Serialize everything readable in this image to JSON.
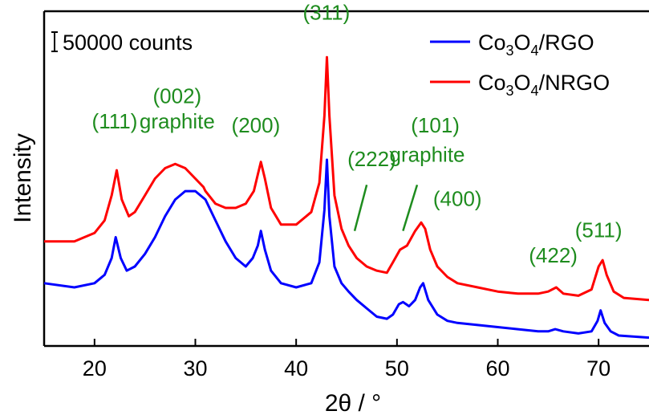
{
  "chart_data": {
    "type": "line",
    "xlabel": "2θ / °",
    "ylabel": "Intensity",
    "xlim": [
      15,
      75
    ],
    "xticks": [
      20,
      30,
      40,
      50,
      60,
      70
    ],
    "scale_note": "50000 counts",
    "legend_placement": "top-right",
    "grid": false,
    "series": [
      {
        "name": "Co3O4/RGO",
        "color": "#0000ff",
        "x": [
          15,
          18,
          20,
          21,
          21.7,
          22.1,
          22.6,
          23.2,
          24,
          25,
          26,
          27,
          28,
          29,
          30,
          31,
          32,
          33,
          34,
          35,
          35.7,
          36.2,
          36.5,
          36.9,
          37.5,
          38.5,
          40,
          41.5,
          42.3,
          42.8,
          43.05,
          43.3,
          43.8,
          44.5,
          45.2,
          46,
          47,
          48,
          49,
          49.6,
          50.2,
          50.6,
          51.2,
          51.8,
          52.3,
          52.6,
          53.1,
          54,
          55,
          56,
          58,
          60,
          62,
          64,
          65,
          65.7,
          66.5,
          68,
          69.3,
          69.9,
          70.2,
          70.6,
          71.2,
          72,
          75
        ],
        "y": [
          0.3,
          0.28,
          0.3,
          0.34,
          0.42,
          0.52,
          0.42,
          0.36,
          0.38,
          0.44,
          0.52,
          0.62,
          0.7,
          0.74,
          0.74,
          0.7,
          0.6,
          0.5,
          0.42,
          0.38,
          0.42,
          0.48,
          0.55,
          0.46,
          0.36,
          0.3,
          0.28,
          0.3,
          0.4,
          0.65,
          0.89,
          0.62,
          0.38,
          0.3,
          0.26,
          0.22,
          0.18,
          0.14,
          0.13,
          0.15,
          0.2,
          0.21,
          0.19,
          0.22,
          0.28,
          0.3,
          0.22,
          0.15,
          0.12,
          0.11,
          0.1,
          0.09,
          0.08,
          0.07,
          0.07,
          0.08,
          0.07,
          0.06,
          0.07,
          0.12,
          0.17,
          0.11,
          0.07,
          0.05,
          0.04
        ]
      },
      {
        "name": "Co3O4/NRGO",
        "color": "#ff0000",
        "x": [
          15,
          18,
          20,
          21,
          21.7,
          22.2,
          22.7,
          23.4,
          24,
          25,
          26,
          27,
          28,
          29,
          30,
          30.8,
          31,
          32,
          33,
          34,
          35,
          35.8,
          36.2,
          36.5,
          36.9,
          37.5,
          38.5,
          40,
          41.5,
          42.3,
          42.8,
          43.05,
          43.3,
          43.8,
          44.5,
          45.2,
          46,
          47,
          48,
          49,
          49.6,
          50.3,
          51,
          51.8,
          52.4,
          52.8,
          53.3,
          54,
          55,
          56,
          58,
          60,
          62,
          64,
          65,
          65.8,
          66.5,
          68,
          69.3,
          70,
          70.4,
          70.8,
          71.5,
          72.5,
          75
        ],
        "y": [
          0.5,
          0.5,
          0.54,
          0.6,
          0.72,
          0.84,
          0.7,
          0.62,
          0.64,
          0.72,
          0.8,
          0.85,
          0.87,
          0.85,
          0.8,
          0.76,
          0.74,
          0.68,
          0.66,
          0.66,
          0.68,
          0.74,
          0.82,
          0.88,
          0.8,
          0.66,
          0.58,
          0.58,
          0.64,
          0.78,
          1.1,
          1.38,
          1.1,
          0.72,
          0.56,
          0.48,
          0.42,
          0.38,
          0.36,
          0.35,
          0.4,
          0.46,
          0.48,
          0.55,
          0.59,
          0.56,
          0.46,
          0.38,
          0.33,
          0.3,
          0.28,
          0.26,
          0.25,
          0.25,
          0.26,
          0.28,
          0.25,
          0.24,
          0.27,
          0.38,
          0.41,
          0.34,
          0.26,
          0.23,
          0.22
        ]
      }
    ],
    "annotations": [
      {
        "text": "(111)",
        "x": 22.0,
        "level": 1.04
      },
      {
        "text": "(002)",
        "x": 28.2,
        "level": 1.16
      },
      {
        "text": "graphite",
        "x": 28.2,
        "level": 1.04
      },
      {
        "text": "(200)",
        "x": 36.0,
        "level": 1.02
      },
      {
        "text": "(311)",
        "x": 43.0,
        "level": 1.56
      },
      {
        "text": "(222)",
        "x": 47.5,
        "level": 0.86
      },
      {
        "text": "(101)",
        "x": 53.8,
        "level": 1.02
      },
      {
        "text": "graphite",
        "x": 53.0,
        "level": 0.88
      },
      {
        "text": "(400)",
        "x": 56.0,
        "level": 0.67
      },
      {
        "text": "(422)",
        "x": 65.5,
        "level": 0.4
      },
      {
        "text": "(511)",
        "x": 70.0,
        "level": 0.52
      }
    ],
    "pointer_lines": [
      {
        "x1": 47.0,
        "y1": 0.77,
        "x2": 45.8,
        "y2": 0.55
      },
      {
        "x1": 52.0,
        "y1": 0.77,
        "x2": 50.6,
        "y2": 0.55
      }
    ]
  },
  "legend": {
    "rgo": {
      "pre": "Co",
      "sub1": "3",
      "mid": "O",
      "sub2": "4",
      "post": "/RGO"
    },
    "nrgo": {
      "pre": "Co",
      "sub1": "3",
      "mid": "O",
      "sub2": "4",
      "post": "/NRGO"
    }
  }
}
